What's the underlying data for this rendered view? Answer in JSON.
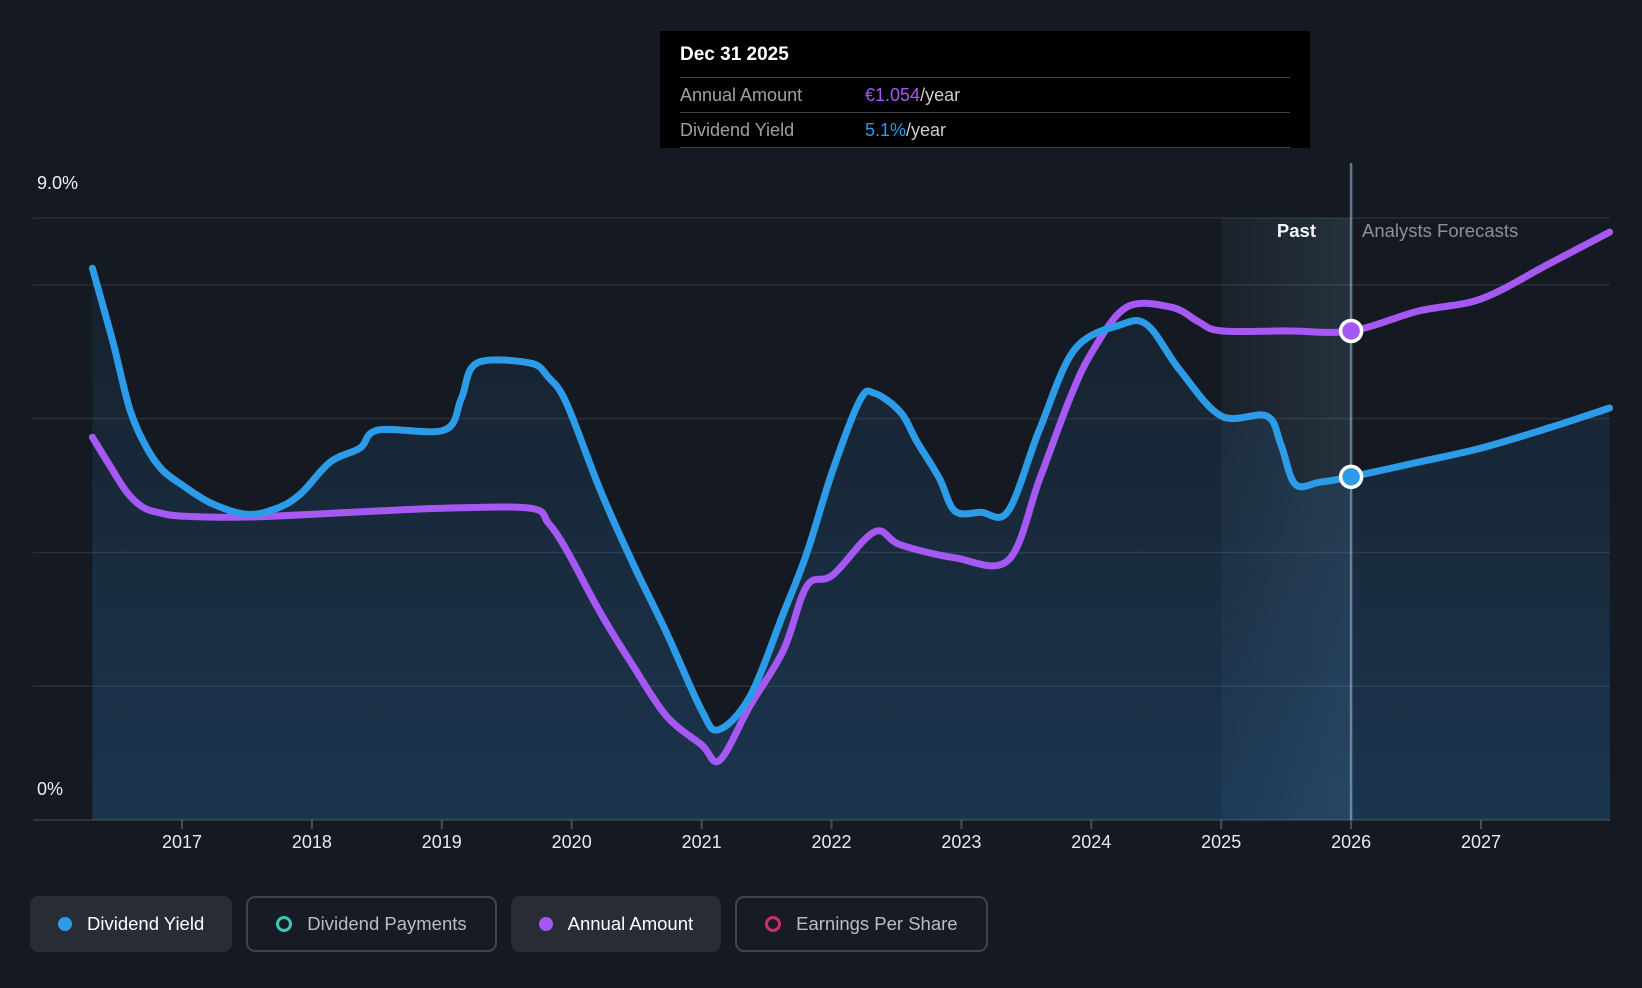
{
  "y_axis": {
    "top_label": "9.0%",
    "bottom_label": "0%"
  },
  "x_axis": {
    "years": [
      "2017",
      "2018",
      "2019",
      "2020",
      "2021",
      "2022",
      "2023",
      "2024",
      "2025",
      "2026",
      "2027"
    ]
  },
  "zones": {
    "past_label": "Past",
    "forecast_label": "Analysts Forecasts"
  },
  "tooltip": {
    "date": "Dec 31 2025",
    "rows": [
      {
        "label": "Annual Amount",
        "value": "€1.054",
        "suffix": "/year",
        "value_color": "#a658f2"
      },
      {
        "label": "Dividend Yield",
        "value": "5.1%",
        "suffix": "/year",
        "value_color": "#2d9ce8"
      }
    ]
  },
  "legend": [
    {
      "label": "Dividend Yield",
      "state": "active",
      "marker": "filled",
      "color": "#2d9ce8"
    },
    {
      "label": "Dividend Payments",
      "state": "inactive",
      "marker": "ring",
      "color": "#3ec6b4"
    },
    {
      "label": "Annual Amount",
      "state": "active",
      "marker": "filled",
      "color": "#a658f2"
    },
    {
      "label": "Earnings Per Share",
      "state": "inactive",
      "marker": "ring",
      "color": "#ce2d69"
    }
  ],
  "colors": {
    "background": "#151a22",
    "dividend_yield_line": "#2d9ce8",
    "annual_amount_line": "#a658f2",
    "area_fill": "#2a74b8",
    "gridline": "rgba(255,255,255,0.09)",
    "baseline": "rgba(255,255,255,0.16)",
    "past_band": "#7eb3dc",
    "divider": "rgba(159,195,226,0.55)",
    "tooltip_bg": "#000000"
  },
  "chart_data": {
    "type": "line",
    "title": "Dividend history and forecast",
    "x_range": [
      2016.3,
      2028.0
    ],
    "y_axis_left": {
      "unit": "%",
      "min": 0,
      "max": 9,
      "visible_ticks": [
        "9.0%",
        "0%"
      ],
      "gridline_values_pct": [
        9,
        8,
        6,
        4,
        2,
        0
      ]
    },
    "past_band_years": [
      2025,
      2026
    ],
    "forecast_divider_year": 2026,
    "hover": {
      "date": "Dec 31 2025",
      "annual_amount_eur_per_year": 1.054,
      "dividend_yield_pct_per_year": 5.1
    },
    "series": [
      {
        "name": "Dividend Yield",
        "unit": "%",
        "style": "line+area",
        "color": "#2d9ce8",
        "points": [
          [
            2016.31,
            8.25
          ],
          [
            2016.47,
            7.13
          ],
          [
            2016.6,
            6.13
          ],
          [
            2016.73,
            5.56
          ],
          [
            2016.85,
            5.23
          ],
          [
            2017.0,
            5.01
          ],
          [
            2017.22,
            4.74
          ],
          [
            2017.5,
            4.57
          ],
          [
            2017.73,
            4.66
          ],
          [
            2017.91,
            4.87
          ],
          [
            2018.14,
            5.35
          ],
          [
            2018.37,
            5.56
          ],
          [
            2018.51,
            5.83
          ],
          [
            2019.02,
            5.83
          ],
          [
            2019.15,
            6.3
          ],
          [
            2019.27,
            6.83
          ],
          [
            2019.68,
            6.83
          ],
          [
            2019.82,
            6.62
          ],
          [
            2019.96,
            6.23
          ],
          [
            2020.22,
            4.93
          ],
          [
            2020.47,
            3.84
          ],
          [
            2020.73,
            2.8
          ],
          [
            2021.0,
            1.64
          ],
          [
            2021.13,
            1.35
          ],
          [
            2021.37,
            1.84
          ],
          [
            2021.63,
            3.09
          ],
          [
            2021.81,
            3.99
          ],
          [
            2022.01,
            5.23
          ],
          [
            2022.22,
            6.28
          ],
          [
            2022.33,
            6.38
          ],
          [
            2022.53,
            6.1
          ],
          [
            2022.66,
            5.65
          ],
          [
            2022.83,
            5.11
          ],
          [
            2022.95,
            4.62
          ],
          [
            2023.15,
            4.6
          ],
          [
            2023.36,
            4.62
          ],
          [
            2023.6,
            5.83
          ],
          [
            2023.87,
            7.03
          ],
          [
            2024.22,
            7.4
          ],
          [
            2024.43,
            7.4
          ],
          [
            2024.68,
            6.73
          ],
          [
            2025.0,
            6.04
          ],
          [
            2025.35,
            6.04
          ],
          [
            2025.46,
            5.61
          ],
          [
            2025.57,
            5.02
          ],
          [
            2025.76,
            5.05
          ],
          [
            2026.0,
            5.13
          ],
          [
            2026.52,
            5.35
          ],
          [
            2027.0,
            5.56
          ],
          [
            2027.52,
            5.86
          ],
          [
            2027.99,
            6.16
          ]
        ]
      },
      {
        "name": "Annual Amount",
        "unit": "EUR/year",
        "style": "line",
        "color": "#a658f2",
        "points": [
          [
            2016.31,
            0.825
          ],
          [
            2016.45,
            0.761
          ],
          [
            2016.58,
            0.705
          ],
          [
            2016.7,
            0.674
          ],
          [
            2016.83,
            0.662
          ],
          [
            2017.0,
            0.655
          ],
          [
            2017.52,
            0.653
          ],
          [
            2018.37,
            0.664
          ],
          [
            2019.01,
            0.672
          ],
          [
            2019.68,
            0.672
          ],
          [
            2019.82,
            0.64
          ],
          [
            2019.96,
            0.582
          ],
          [
            2020.22,
            0.447
          ],
          [
            2020.47,
            0.333
          ],
          [
            2020.73,
            0.224
          ],
          [
            2021.0,
            0.162
          ],
          [
            2021.14,
            0.129
          ],
          [
            2021.37,
            0.245
          ],
          [
            2021.63,
            0.366
          ],
          [
            2021.81,
            0.504
          ],
          [
            2022.01,
            0.528
          ],
          [
            2022.33,
            0.621
          ],
          [
            2022.53,
            0.593
          ],
          [
            2022.95,
            0.565
          ],
          [
            2023.36,
            0.56
          ],
          [
            2023.6,
            0.733
          ],
          [
            2023.83,
            0.905
          ],
          [
            2024.0,
            1.006
          ],
          [
            2024.27,
            1.105
          ],
          [
            2024.62,
            1.105
          ],
          [
            2024.83,
            1.073
          ],
          [
            2025.0,
            1.054
          ],
          [
            2025.5,
            1.054
          ],
          [
            2026.0,
            1.054
          ],
          [
            2026.52,
            1.097
          ],
          [
            2027.0,
            1.123
          ],
          [
            2027.52,
            1.198
          ],
          [
            2027.99,
            1.267
          ]
        ]
      }
    ],
    "markers": [
      {
        "series": "Annual Amount",
        "year": 2026,
        "value": 1.054,
        "display": "€1.054/year"
      },
      {
        "series": "Dividend Yield",
        "year": 2026,
        "value": 5.13,
        "display": "5.1%/year"
      }
    ]
  }
}
